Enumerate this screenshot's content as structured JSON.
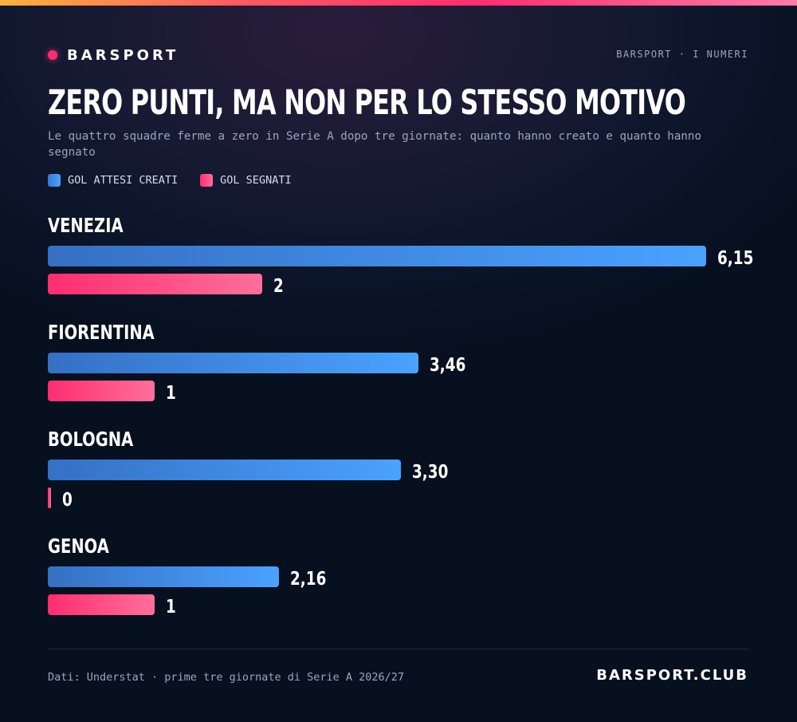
{
  "brand": {
    "name": "BARSPORT",
    "kicker": "BARSPORT · I NUMERI",
    "site": "BARSPORT.CLUB"
  },
  "colors": {
    "accent": "#ff2d6f",
    "xg": "#4aa2ff",
    "goals": "#ff6f9a",
    "background": "#0b1428"
  },
  "source": "Dati: Understat · prime tre giornate di Serie A 2026/27",
  "chart_data": {
    "type": "bar",
    "orientation": "horizontal",
    "title": "ZERO PUNTI, MA NON PER LO STESSO MOTIVO",
    "subtitle": "Le quattro squadre ferme a zero in Serie A dopo tre giornate: quanto hanno creato e quanto hanno segnato",
    "categories": [
      "VENEZIA",
      "FIORENTINA",
      "BOLOGNA",
      "GENOA"
    ],
    "series": [
      {
        "name": "GOL ATTESI CREATI",
        "values": [
          6.15,
          3.46,
          3.3,
          2.16
        ],
        "labels": [
          "6,15",
          "3,46",
          "3,30",
          "2,16"
        ]
      },
      {
        "name": "GOL SEGNATI",
        "values": [
          2,
          1,
          0,
          1
        ],
        "labels": [
          "2",
          "1",
          "0",
          "1"
        ]
      }
    ],
    "xlim": [
      0,
      6.15
    ],
    "grid": false,
    "legend_position": "top-left"
  }
}
